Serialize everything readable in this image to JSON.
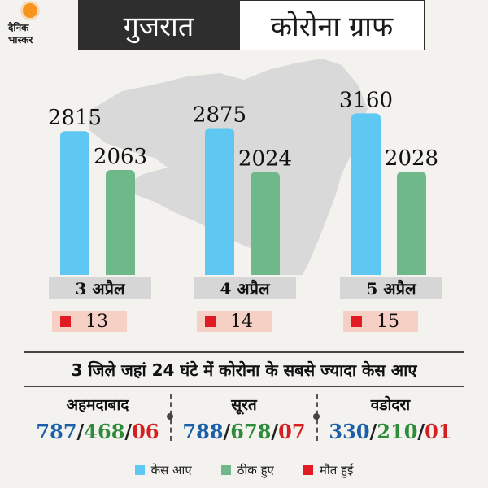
{
  "header": {
    "logo_line1": "दैनिक",
    "logo_line2": "भास्कर",
    "state": "गुजरात",
    "title": "कोरोना ग्राफ"
  },
  "colors": {
    "cases": "#5ec8f2",
    "recovered": "#6fb88a",
    "deaths": "#e01b24",
    "map": "#d9d9d9"
  },
  "chart_data": {
    "type": "bar",
    "categories": [
      "3 अप्रैल",
      "4 अप्रैल",
      "5 अप्रैल"
    ],
    "series": [
      {
        "name": "केस आए",
        "values": [
          2815,
          2875,
          3160
        ]
      },
      {
        "name": "ठीक हुए",
        "values": [
          2063,
          2024,
          2028
        ]
      },
      {
        "name": "मौत हुईं",
        "values": [
          13,
          14,
          15
        ]
      }
    ],
    "deaths_display": [
      "13",
      "14",
      "15"
    ],
    "legend_position": "bottom",
    "grid": false
  },
  "districts_title": "3 जिले जहां 24 घंटे में कोरोना के सबसे ज्यादा केस आए",
  "districts": [
    {
      "name": "अहमदाबाद",
      "cases": "787",
      "recovered": "468",
      "deaths": "06"
    },
    {
      "name": "सूरत",
      "cases": "788",
      "recovered": "678",
      "deaths": "07"
    },
    {
      "name": "वडोदरा",
      "cases": "330",
      "recovered": "210",
      "deaths": "01"
    }
  ],
  "legend": [
    {
      "label": "केस आए",
      "color": "#5ec8f2"
    },
    {
      "label": "ठीक हुए",
      "color": "#6fb88a"
    },
    {
      "label": "मौत हुईं",
      "color": "#e01b24"
    }
  ]
}
